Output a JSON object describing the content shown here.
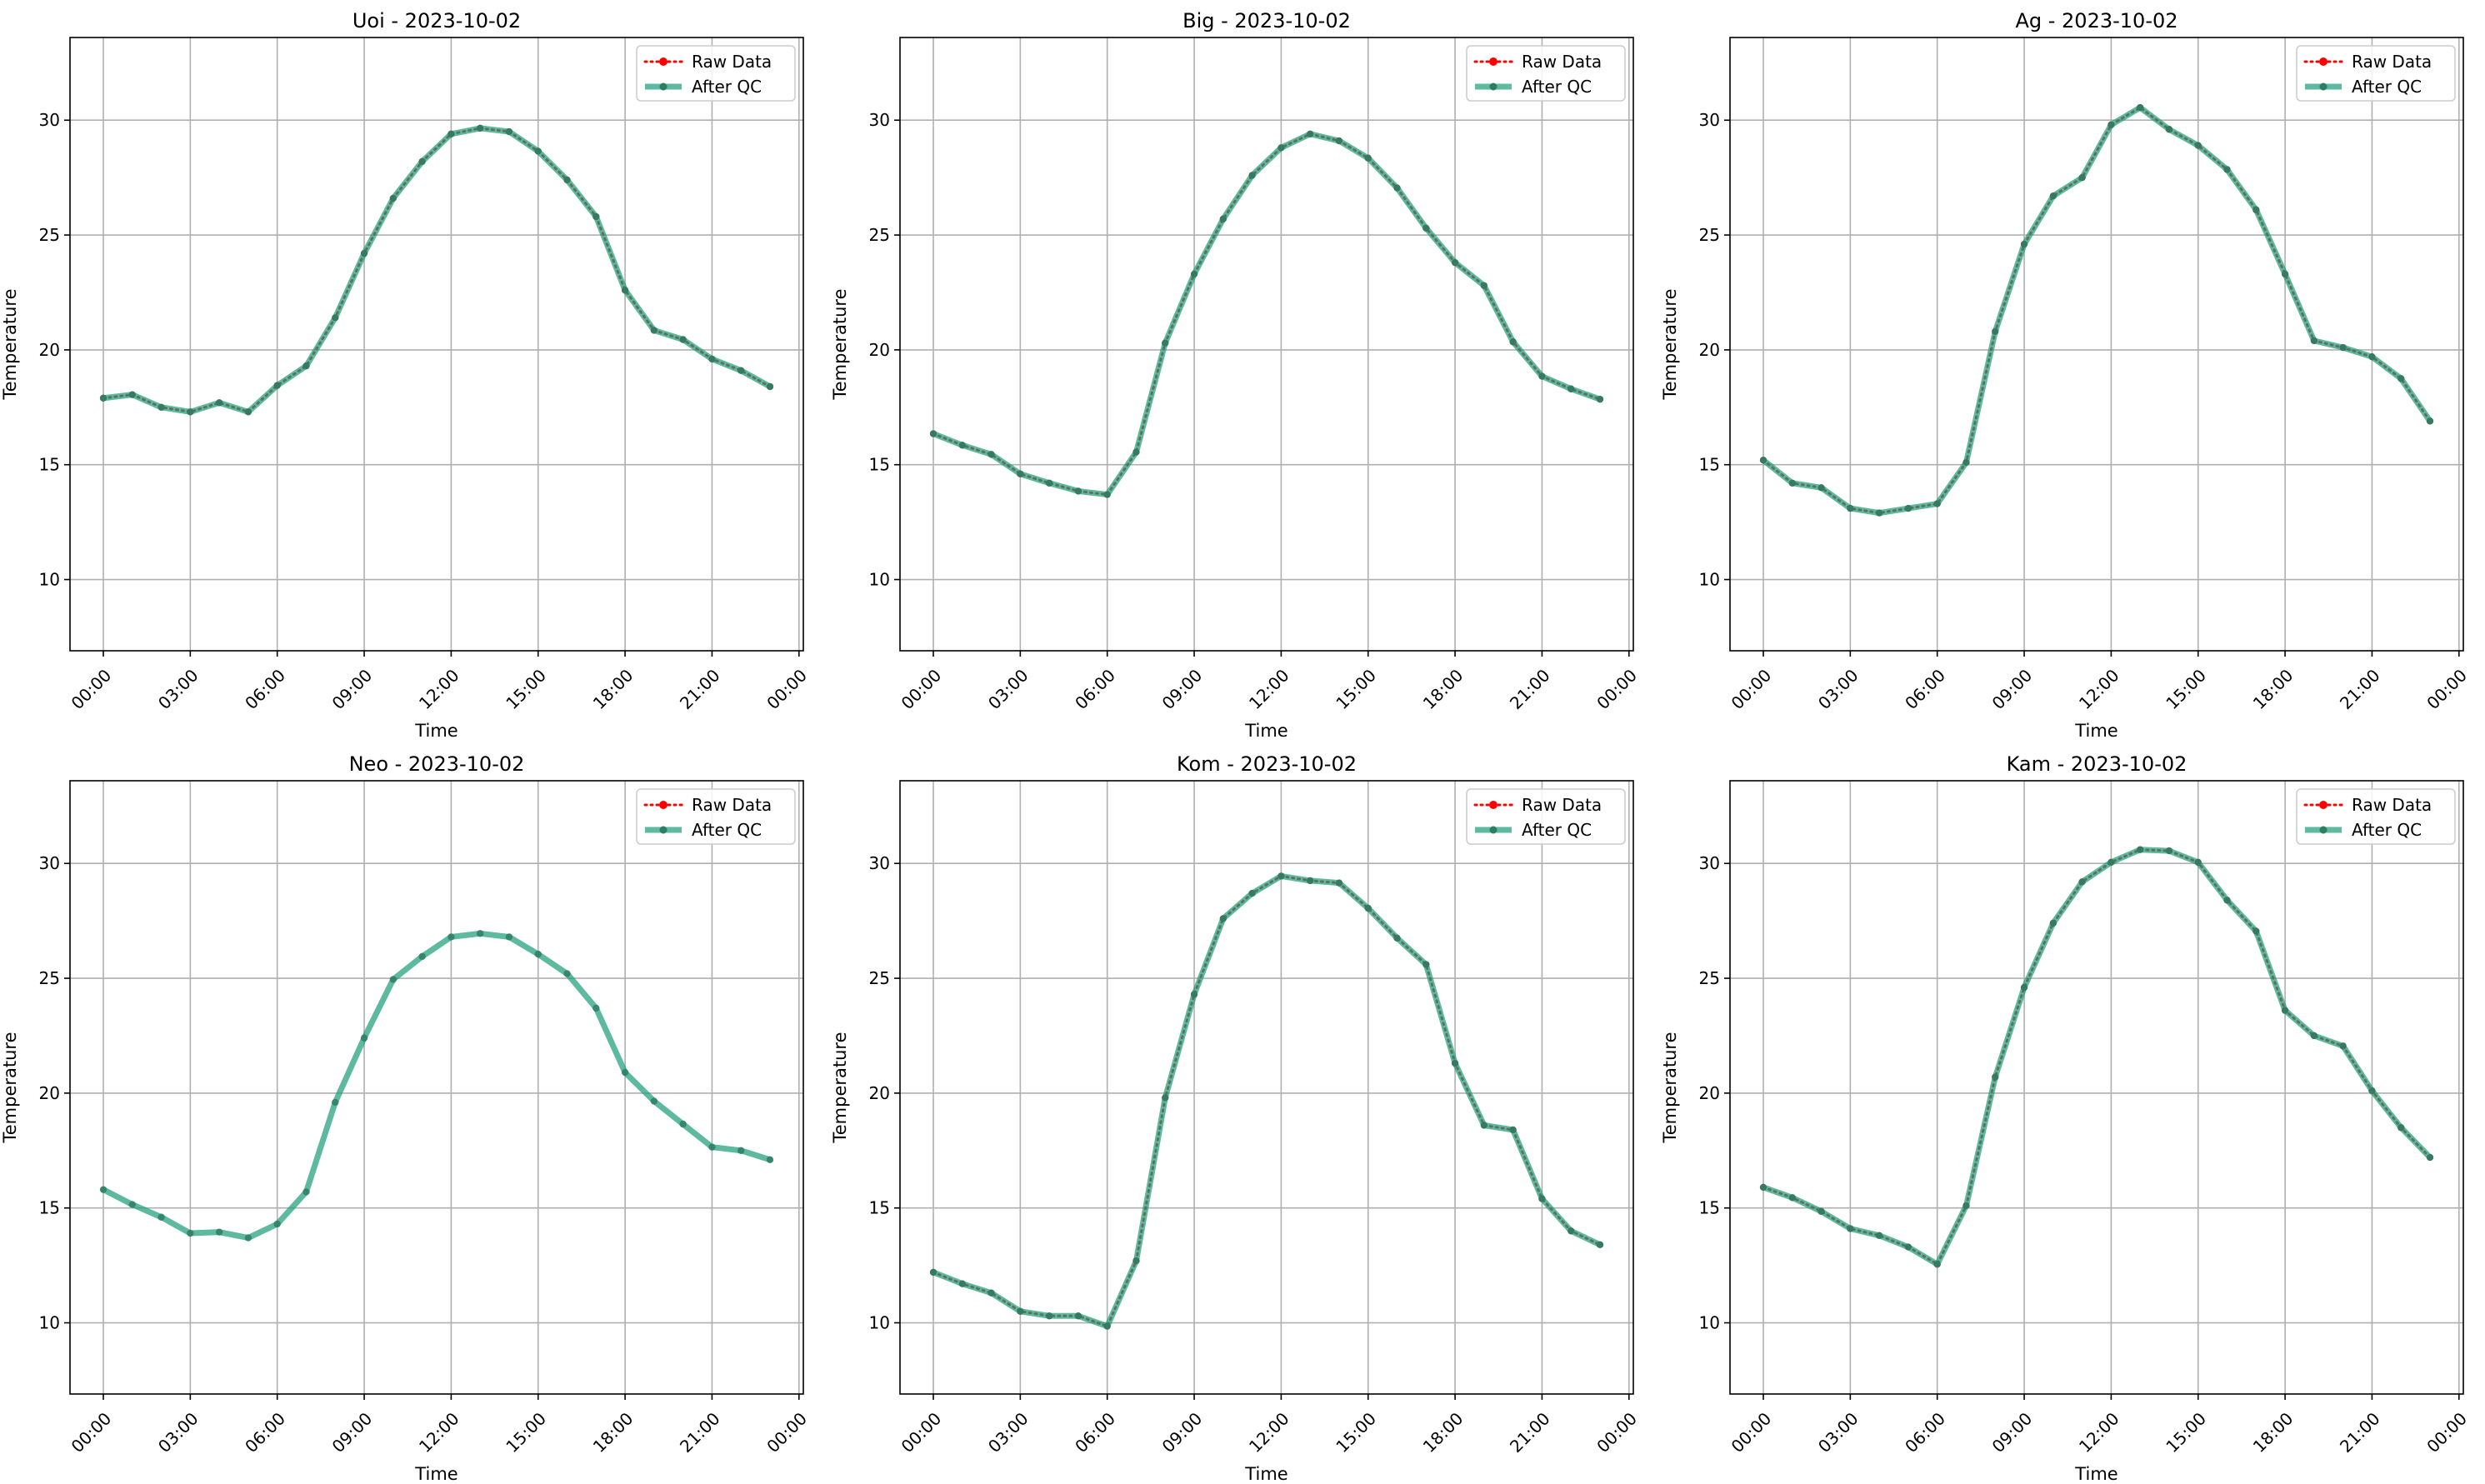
{
  "figure": {
    "legend": {
      "raw_label": "Raw Data",
      "qc_label": "After QC",
      "placement": "upper right"
    },
    "colors": {
      "raw": "#ff0000",
      "qc": "#1f9e7a",
      "qc_marker": "#2e7d63",
      "grid": "#b0b0b0"
    }
  },
  "chart_data": [
    {
      "type": "line",
      "title": "Uoi - 2023-10-02",
      "xlabel": "Time",
      "ylabel": "Temperature",
      "xlim": [
        -1.15,
        24.15
      ],
      "ylim": [
        6.9,
        33.6
      ],
      "x_ticks": [
        0,
        3,
        6,
        9,
        12,
        15,
        18,
        21,
        24
      ],
      "x_tick_labels": [
        "00:00",
        "03:00",
        "06:00",
        "09:00",
        "12:00",
        "15:00",
        "18:00",
        "21:00",
        "00:00"
      ],
      "y_ticks": [
        10,
        15,
        20,
        25,
        30
      ],
      "grid": true,
      "x": [
        0,
        1,
        2,
        3,
        4,
        5,
        6,
        7,
        8,
        9,
        10,
        11,
        12,
        13,
        14,
        15,
        16,
        17,
        18,
        19,
        20,
        21,
        22,
        23
      ],
      "series": [
        {
          "name": "Raw Data",
          "values": [
            17.9,
            18.05,
            17.5,
            17.3,
            17.7,
            17.3,
            18.45,
            19.3,
            21.4,
            24.2,
            26.6,
            28.2,
            29.4,
            29.65,
            29.5,
            28.65,
            27.4,
            25.8,
            22.6,
            20.85,
            20.45,
            19.6,
            19.1,
            18.4
          ]
        },
        {
          "name": "After QC",
          "values": [
            17.9,
            18.05,
            17.5,
            17.3,
            17.7,
            17.3,
            18.45,
            19.3,
            21.4,
            24.2,
            26.6,
            28.2,
            29.4,
            29.65,
            29.5,
            28.65,
            27.4,
            25.8,
            22.6,
            20.85,
            20.45,
            19.6,
            19.1,
            18.4
          ]
        }
      ]
    },
    {
      "type": "line",
      "title": "Big - 2023-10-02",
      "xlabel": "Time",
      "ylabel": "Temperature",
      "xlim": [
        -1.15,
        24.15
      ],
      "ylim": [
        6.9,
        33.6
      ],
      "x_ticks": [
        0,
        3,
        6,
        9,
        12,
        15,
        18,
        21,
        24
      ],
      "x_tick_labels": [
        "00:00",
        "03:00",
        "06:00",
        "09:00",
        "12:00",
        "15:00",
        "18:00",
        "21:00",
        "00:00"
      ],
      "y_ticks": [
        10,
        15,
        20,
        25,
        30
      ],
      "grid": true,
      "x": [
        0,
        1,
        2,
        3,
        4,
        5,
        6,
        7,
        8,
        9,
        10,
        11,
        12,
        13,
        14,
        15,
        16,
        17,
        18,
        19,
        20,
        21,
        22,
        23
      ],
      "series": [
        {
          "name": "Raw Data",
          "values": [
            16.35,
            15.85,
            15.45,
            14.6,
            14.2,
            13.85,
            13.7,
            15.55,
            20.3,
            23.3,
            25.7,
            27.6,
            28.8,
            29.4,
            29.1,
            28.35,
            27.05,
            25.3,
            23.8,
            22.8,
            20.35,
            18.85,
            18.3,
            17.85
          ]
        },
        {
          "name": "After QC",
          "values": [
            16.35,
            15.85,
            15.45,
            14.6,
            14.2,
            13.85,
            13.7,
            15.55,
            20.3,
            23.3,
            25.7,
            27.6,
            28.8,
            29.4,
            29.1,
            28.35,
            27.05,
            25.3,
            23.8,
            22.8,
            20.35,
            18.85,
            18.3,
            17.85
          ]
        }
      ]
    },
    {
      "type": "line",
      "title": "Ag - 2023-10-02",
      "xlabel": "Time",
      "ylabel": "Temperature",
      "xlim": [
        -1.15,
        24.15
      ],
      "ylim": [
        6.9,
        33.6
      ],
      "x_ticks": [
        0,
        3,
        6,
        9,
        12,
        15,
        18,
        21,
        24
      ],
      "x_tick_labels": [
        "00:00",
        "03:00",
        "06:00",
        "09:00",
        "12:00",
        "15:00",
        "18:00",
        "21:00",
        "00:00"
      ],
      "y_ticks": [
        10,
        15,
        20,
        25,
        30
      ],
      "grid": true,
      "x": [
        0,
        1,
        2,
        3,
        4,
        5,
        6,
        7,
        8,
        9,
        10,
        11,
        12,
        13,
        14,
        15,
        16,
        17,
        18,
        19,
        20,
        21,
        22,
        23
      ],
      "series": [
        {
          "name": "Raw Data",
          "values": [
            15.2,
            14.2,
            14.0,
            13.1,
            12.9,
            13.1,
            13.3,
            15.1,
            20.8,
            24.6,
            26.7,
            27.5,
            29.8,
            30.55,
            29.6,
            28.9,
            27.85,
            26.1,
            23.3,
            20.4,
            20.1,
            19.7,
            18.75,
            16.9
          ]
        },
        {
          "name": "After QC",
          "values": [
            15.2,
            14.2,
            14.0,
            13.1,
            12.9,
            13.1,
            13.3,
            15.1,
            20.8,
            24.6,
            26.7,
            27.5,
            29.8,
            30.55,
            29.6,
            28.9,
            27.85,
            26.1,
            23.3,
            20.4,
            20.1,
            19.7,
            18.75,
            16.9
          ]
        }
      ]
    },
    {
      "type": "line",
      "title": "Neo - 2023-10-02",
      "xlabel": "Time",
      "ylabel": "Temperature",
      "xlim": [
        -1.15,
        24.15
      ],
      "ylim": [
        6.9,
        33.6
      ],
      "x_ticks": [
        0,
        3,
        6,
        9,
        12,
        15,
        18,
        21,
        24
      ],
      "x_tick_labels": [
        "00:00",
        "03:00",
        "06:00",
        "09:00",
        "12:00",
        "15:00",
        "18:00",
        "21:00",
        "00:00"
      ],
      "y_ticks": [
        10,
        15,
        20,
        25,
        30
      ],
      "grid": true,
      "x": [
        0,
        1,
        2,
        3,
        4,
        5,
        6,
        7,
        8,
        9,
        10,
        11,
        12,
        13,
        14,
        15,
        16,
        17,
        18,
        19,
        20,
        21,
        22,
        23
      ],
      "series": [
        {
          "name": "After QC",
          "values": [
            15.8,
            15.15,
            14.6,
            13.9,
            13.95,
            13.7,
            14.3,
            15.7,
            19.6,
            22.4,
            24.95,
            25.95,
            26.8,
            26.95,
            26.8,
            26.05,
            25.2,
            23.7,
            20.9,
            19.65,
            18.65,
            17.65,
            17.5,
            17.1
          ]
        }
      ]
    },
    {
      "type": "line",
      "title": "Kom - 2023-10-02",
      "xlabel": "Time",
      "ylabel": "Temperature",
      "xlim": [
        -1.15,
        24.15
      ],
      "ylim": [
        6.9,
        33.6
      ],
      "x_ticks": [
        0,
        3,
        6,
        9,
        12,
        15,
        18,
        21,
        24
      ],
      "x_tick_labels": [
        "00:00",
        "03:00",
        "06:00",
        "09:00",
        "12:00",
        "15:00",
        "18:00",
        "21:00",
        "00:00"
      ],
      "y_ticks": [
        10,
        15,
        20,
        25,
        30
      ],
      "grid": true,
      "x": [
        0,
        1,
        2,
        3,
        4,
        5,
        6,
        7,
        8,
        9,
        10,
        11,
        12,
        13,
        14,
        15,
        16,
        17,
        18,
        19,
        20,
        21,
        22,
        23
      ],
      "series": [
        {
          "name": "Raw Data",
          "values": [
            12.2,
            11.7,
            11.3,
            10.5,
            10.3,
            10.3,
            9.85,
            12.7,
            19.8,
            24.3,
            27.6,
            28.7,
            29.45,
            29.25,
            29.15,
            28.05,
            26.75,
            25.6,
            21.3,
            18.6,
            18.4,
            15.4,
            14.0,
            13.4
          ]
        },
        {
          "name": "After QC",
          "values": [
            12.2,
            11.7,
            11.3,
            10.5,
            10.3,
            10.3,
            9.85,
            12.7,
            19.8,
            24.3,
            27.6,
            28.7,
            29.45,
            29.25,
            29.15,
            28.05,
            26.75,
            25.6,
            21.3,
            18.6,
            18.4,
            15.4,
            14.0,
            13.4
          ]
        }
      ]
    },
    {
      "type": "line",
      "title": "Kam - 2023-10-02",
      "xlabel": "Time",
      "ylabel": "Temperature",
      "xlim": [
        -1.15,
        24.15
      ],
      "ylim": [
        6.9,
        33.6
      ],
      "x_ticks": [
        0,
        3,
        6,
        9,
        12,
        15,
        18,
        21,
        24
      ],
      "x_tick_labels": [
        "00:00",
        "03:00",
        "06:00",
        "09:00",
        "12:00",
        "15:00",
        "18:00",
        "21:00",
        "00:00"
      ],
      "y_ticks": [
        10,
        15,
        20,
        25,
        30
      ],
      "grid": true,
      "x": [
        0,
        1,
        2,
        3,
        4,
        5,
        6,
        7,
        8,
        9,
        10,
        11,
        12,
        13,
        14,
        15,
        16,
        17,
        18,
        19,
        20,
        21,
        22,
        23
      ],
      "series": [
        {
          "name": "Raw Data",
          "values": [
            15.9,
            15.45,
            14.85,
            14.1,
            13.8,
            13.3,
            12.55,
            15.1,
            20.7,
            24.6,
            27.4,
            29.2,
            30.05,
            30.6,
            30.55,
            30.05,
            28.4,
            27.05,
            23.6,
            22.5,
            22.05,
            20.1,
            18.5,
            17.2
          ]
        },
        {
          "name": "After QC",
          "values": [
            15.9,
            15.45,
            14.85,
            14.1,
            13.8,
            13.3,
            12.55,
            15.1,
            20.7,
            24.6,
            27.4,
            29.2,
            30.05,
            30.6,
            30.55,
            30.05,
            28.4,
            27.05,
            23.6,
            22.5,
            22.05,
            20.1,
            18.5,
            17.2
          ]
        }
      ]
    }
  ]
}
